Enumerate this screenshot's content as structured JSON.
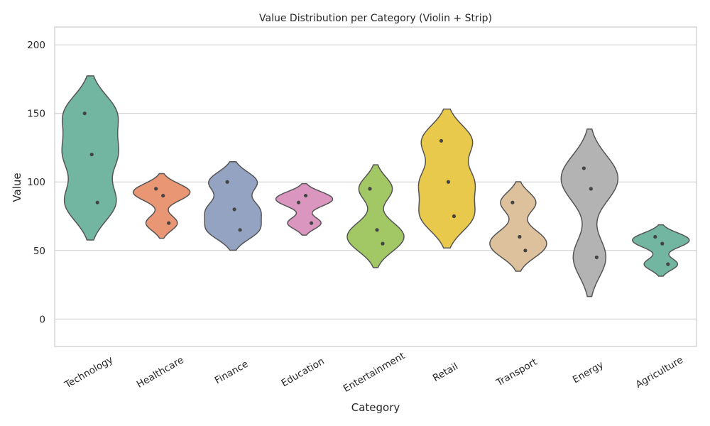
{
  "chart_data": {
    "type": "violin",
    "title": "Value Distribution per Category (Violin + Strip)",
    "xlabel": "Category",
    "ylabel": "Value",
    "ylim": [
      -20,
      213
    ],
    "yticks": [
      0,
      50,
      100,
      150,
      200
    ],
    "grid": "horizontal",
    "legend": "none",
    "categories": [
      "Technology",
      "Healthcare",
      "Finance",
      "Education",
      "Entertainment",
      "Retail",
      "Transport",
      "Energy",
      "Agriculture"
    ],
    "colors": [
      "#72b6a1",
      "#e99675",
      "#95a3c3",
      "#db96c0",
      "#a2c865",
      "#e9c94b",
      "#dcc19c",
      "#b3b3b3",
      "#72b6a1"
    ],
    "points": [
      [
        150,
        120,
        85
      ],
      [
        95,
        90,
        70
      ],
      [
        100,
        80,
        65
      ],
      [
        85,
        90,
        70
      ],
      [
        95,
        65,
        55
      ],
      [
        130,
        100,
        75
      ],
      [
        85,
        60,
        50
      ],
      [
        110,
        95,
        45
      ],
      [
        60,
        55,
        40
      ]
    ]
  }
}
